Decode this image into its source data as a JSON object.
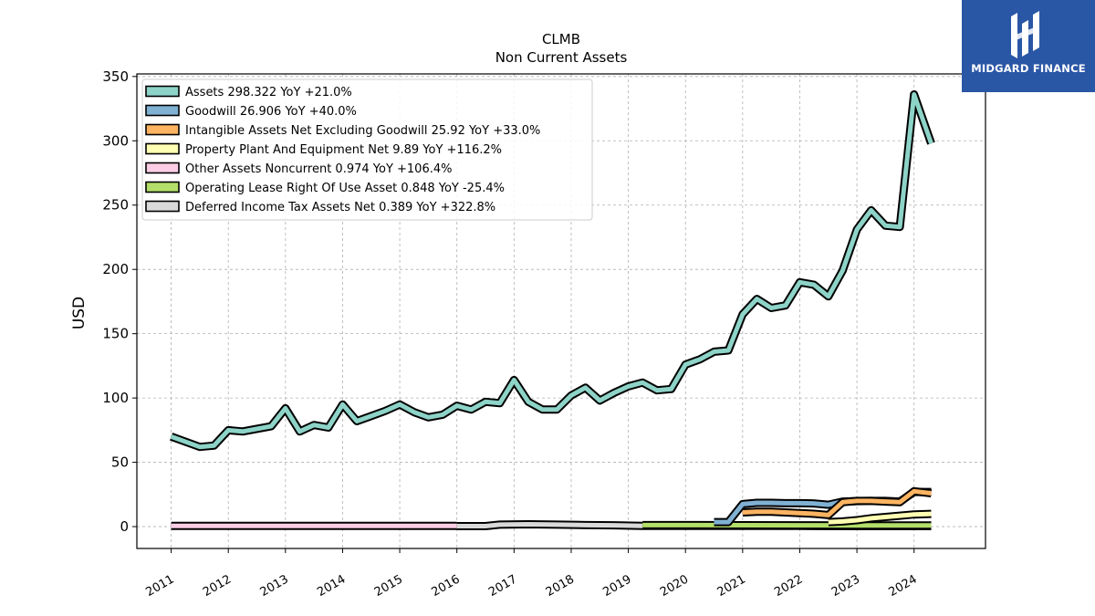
{
  "brand": {
    "name": "MIDGARD FINANCE",
    "bg_color": "#2a56a6"
  },
  "chart_data": {
    "type": "area",
    "title": "CLMB",
    "subtitle": "Non Current  Assets",
    "ylabel": "USD",
    "xlabel": "",
    "ylim": [
      -17,
      352
    ],
    "xlim": [
      2010.4,
      2025.25
    ],
    "yticks": [
      0,
      50,
      100,
      150,
      200,
      250,
      300,
      350
    ],
    "xticks": [
      "2011",
      "2012",
      "2013",
      "2014",
      "2015",
      "2016",
      "2017",
      "2018",
      "2019",
      "2020",
      "2021",
      "2022",
      "2023",
      "2024"
    ],
    "grid": true,
    "legend_position": "top-left",
    "series": [
      {
        "name": "Assets  298.322 YoY +21.0%",
        "color": "#8dd3c7",
        "points": [
          [
            2011.0,
            70
          ],
          [
            2011.5,
            62
          ],
          [
            2011.75,
            63
          ],
          [
            2012.0,
            75
          ],
          [
            2012.25,
            74
          ],
          [
            2012.5,
            76
          ],
          [
            2012.75,
            78
          ],
          [
            2013.0,
            92
          ],
          [
            2013.25,
            74
          ],
          [
            2013.5,
            79
          ],
          [
            2013.75,
            77
          ],
          [
            2014.0,
            95
          ],
          [
            2014.25,
            82
          ],
          [
            2014.5,
            86
          ],
          [
            2014.75,
            90
          ],
          [
            2015.0,
            95
          ],
          [
            2015.25,
            89
          ],
          [
            2015.5,
            85
          ],
          [
            2015.75,
            87
          ],
          [
            2016.0,
            94
          ],
          [
            2016.25,
            91
          ],
          [
            2016.5,
            97
          ],
          [
            2016.75,
            96
          ],
          [
            2017.0,
            114
          ],
          [
            2017.25,
            97
          ],
          [
            2017.5,
            91
          ],
          [
            2017.75,
            91
          ],
          [
            2018.0,
            102
          ],
          [
            2018.25,
            108
          ],
          [
            2018.5,
            98
          ],
          [
            2018.75,
            104
          ],
          [
            2019.0,
            109
          ],
          [
            2019.25,
            112
          ],
          [
            2019.5,
            106
          ],
          [
            2019.75,
            107
          ],
          [
            2020.0,
            126
          ],
          [
            2020.25,
            130
          ],
          [
            2020.5,
            136
          ],
          [
            2020.75,
            137
          ],
          [
            2021.0,
            165
          ],
          [
            2021.25,
            177
          ],
          [
            2021.5,
            170
          ],
          [
            2021.75,
            172
          ],
          [
            2022.0,
            190
          ],
          [
            2022.25,
            188
          ],
          [
            2022.5,
            179
          ],
          [
            2022.75,
            199
          ],
          [
            2023.0,
            231
          ],
          [
            2023.25,
            246
          ],
          [
            2023.5,
            234
          ],
          [
            2023.75,
            233
          ],
          [
            2024.0,
            336
          ],
          [
            2024.3,
            298
          ]
        ]
      },
      {
        "name": "Goodwill  26.906 YoY +40.0%",
        "color": "#80b1d3",
        "points": [
          [
            2020.5,
            3.5
          ],
          [
            2020.75,
            3.5
          ],
          [
            2021.0,
            17.5
          ],
          [
            2021.25,
            18.5
          ],
          [
            2021.5,
            18.5
          ],
          [
            2021.75,
            18.2
          ],
          [
            2022.0,
            18.2
          ],
          [
            2022.25,
            18.0
          ],
          [
            2022.5,
            17.0
          ],
          [
            2022.75,
            19.5
          ],
          [
            2023.0,
            19.8
          ],
          [
            2023.25,
            20.0
          ],
          [
            2023.5,
            20.0
          ],
          [
            2023.75,
            19.5
          ],
          [
            2024.0,
            26.9
          ],
          [
            2024.3,
            26.9
          ]
        ]
      },
      {
        "name": "Intangible Assets Net Excluding Goodwill  25.92 YoY +33.0%",
        "color": "#fdb462",
        "points": [
          [
            2021.0,
            11
          ],
          [
            2021.25,
            11.5
          ],
          [
            2021.5,
            11.5
          ],
          [
            2021.75,
            11
          ],
          [
            2022.0,
            10.5
          ],
          [
            2022.25,
            10
          ],
          [
            2022.5,
            9
          ],
          [
            2022.75,
            19
          ],
          [
            2023.0,
            20
          ],
          [
            2023.25,
            20
          ],
          [
            2023.5,
            19.5
          ],
          [
            2023.75,
            19
          ],
          [
            2024.0,
            27.5
          ],
          [
            2024.3,
            25.9
          ]
        ]
      },
      {
        "name": "Property Plant And Equipment Net  9.89 YoY +116.2%",
        "color": "#ffffb3",
        "points": [
          [
            2022.5,
            3.5
          ],
          [
            2022.75,
            4
          ],
          [
            2023.0,
            5
          ],
          [
            2023.25,
            6.5
          ],
          [
            2023.5,
            7.5
          ],
          [
            2023.75,
            8.5
          ],
          [
            2024.0,
            9.5
          ],
          [
            2024.3,
            9.9
          ]
        ]
      },
      {
        "name": "Other Assets Noncurrent  0.974 YoY +106.4%",
        "color": "#fccde5",
        "points": [
          [
            2011.0,
            0.5
          ],
          [
            2012.0,
            0.5
          ],
          [
            2013.0,
            0.5
          ],
          [
            2014.0,
            0.5
          ],
          [
            2015.0,
            0.5
          ],
          [
            2016.0,
            0.5
          ]
        ]
      },
      {
        "name": "Operating Lease Right Of Use Asset  0.848 YoY -25.4%",
        "color": "#b3de69",
        "points": [
          [
            2019.25,
            1.2
          ],
          [
            2020.0,
            1.2
          ],
          [
            2021.0,
            1.1
          ],
          [
            2022.0,
            1.0
          ],
          [
            2023.0,
            0.9
          ],
          [
            2024.0,
            0.85
          ],
          [
            2024.3,
            0.85
          ]
        ]
      },
      {
        "name": "Deferred Income Tax Assets Net  0.389 YoY +322.8%",
        "color": "#d9d9d9",
        "points": [
          [
            2016.0,
            0.4
          ],
          [
            2016.5,
            0.4
          ],
          [
            2016.75,
            1.5
          ],
          [
            2017.25,
            1.8
          ],
          [
            2017.75,
            1.5
          ],
          [
            2018.25,
            1.2
          ],
          [
            2018.75,
            1.0
          ],
          [
            2019.25,
            0.6
          ],
          [
            2020.0,
            0.5
          ],
          [
            2021.0,
            0.5
          ],
          [
            2022.0,
            0.5
          ],
          [
            2023.0,
            0.4
          ],
          [
            2024.0,
            0.4
          ],
          [
            2024.3,
            0.39
          ]
        ]
      }
    ]
  }
}
